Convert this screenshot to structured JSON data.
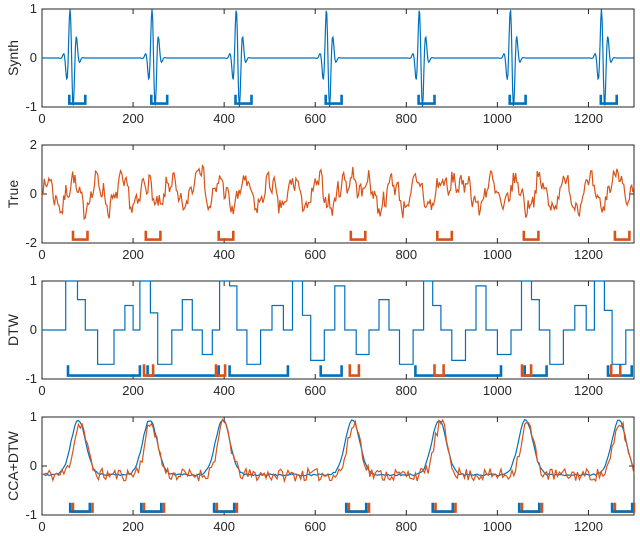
{
  "figure": {
    "background": "#ffffff",
    "axis_color": "#262626"
  },
  "chart_data": [
    {
      "type": "line",
      "ylabel": "Synth",
      "xlim": [
        0,
        1300
      ],
      "ylim": [
        -1,
        1
      ],
      "xticks": [
        0,
        200,
        400,
        600,
        800,
        1000,
        1200
      ],
      "yticks": [
        -1,
        0,
        1
      ],
      "axis_color": "#262626",
      "series": [
        {
          "name": "synth-signal",
          "color": "#0072BD",
          "kind": "bursts",
          "centers": [
            65,
            245,
            430,
            628,
            832,
            1032,
            1232
          ],
          "amp": 1.1,
          "period": 15,
          "sigma": 8,
          "seed": 1
        }
      ],
      "markers": [
        {
          "name": "synth-event-markers",
          "color": "#0072BD",
          "base": -0.93,
          "tip": -0.75,
          "intervals": [
            [
              60,
              95
            ],
            [
              240,
              275
            ],
            [
              425,
              460
            ],
            [
              623,
              658
            ],
            [
              827,
              862
            ],
            [
              1027,
              1062
            ],
            [
              1227,
              1262
            ]
          ]
        }
      ]
    },
    {
      "type": "line",
      "ylabel": "True",
      "xlim": [
        0,
        1300
      ],
      "ylim": [
        -2,
        2
      ],
      "xticks": [
        0,
        200,
        400,
        600,
        800,
        1000,
        1200
      ],
      "yticks": [
        -2,
        0,
        2
      ],
      "axis_color": "#262626",
      "series": [
        {
          "name": "true-signal",
          "color": "#D95319",
          "kind": "osc",
          "components": [
            [
              0.55,
              54,
              0
            ],
            [
              0.22,
              17,
              1.3
            ]
          ],
          "noise": 0.33,
          "peaks": [
            [
              350,
              1.15,
              7
            ],
            [
              685,
              1.25,
              7
            ],
            [
              905,
              1.15,
              7
            ],
            [
              1270,
              1.0,
              7
            ]
          ],
          "seed": 7
        }
      ],
      "markers": [
        {
          "name": "true-event-markers",
          "color": "#D95319",
          "base": -1.86,
          "tip": -1.5,
          "intervals": [
            [
              68,
              100
            ],
            [
              228,
              260
            ],
            [
              388,
              420
            ],
            [
              678,
              710
            ],
            [
              868,
              900
            ],
            [
              1058,
              1090
            ],
            [
              1258,
              1290
            ]
          ]
        }
      ]
    },
    {
      "type": "line",
      "ylabel": "DTW",
      "xlim": [
        0,
        1300
      ],
      "ylim": [
        -1,
        1
      ],
      "xticks": [
        0,
        200,
        400,
        600,
        800,
        1000,
        1200
      ],
      "yticks": [
        -1,
        0,
        1
      ],
      "axis_color": "#262626",
      "series": [
        {
          "name": "dtw-aligned-signal",
          "color": "#0072BD",
          "kind": "steps",
          "points": [
            [
              0,
              0
            ],
            [
              52,
              1
            ],
            [
              78,
              0.62
            ],
            [
              95,
              0
            ],
            [
              122,
              -0.7
            ],
            [
              158,
              0
            ],
            [
              182,
              0.5
            ],
            [
              200,
              0
            ],
            [
              215,
              1
            ],
            [
              238,
              0.35
            ],
            [
              254,
              -0.7
            ],
            [
              285,
              0
            ],
            [
              308,
              0.62
            ],
            [
              330,
              0
            ],
            [
              352,
              -0.5
            ],
            [
              374,
              0
            ],
            [
              390,
              1
            ],
            [
              412,
              0.9
            ],
            [
              428,
              0
            ],
            [
              450,
              -0.7
            ],
            [
              480,
              0
            ],
            [
              505,
              0.5
            ],
            [
              530,
              0
            ],
            [
              550,
              1
            ],
            [
              572,
              0.3
            ],
            [
              590,
              -0.62
            ],
            [
              620,
              0
            ],
            [
              643,
              0.9
            ],
            [
              665,
              0
            ],
            [
              690,
              -0.5
            ],
            [
              718,
              0
            ],
            [
              740,
              0.62
            ],
            [
              762,
              0
            ],
            [
              785,
              -0.7
            ],
            [
              815,
              0
            ],
            [
              838,
              1
            ],
            [
              858,
              0.5
            ],
            [
              876,
              0
            ],
            [
              900,
              -0.62
            ],
            [
              930,
              0
            ],
            [
              953,
              0.9
            ],
            [
              975,
              0
            ],
            [
              1000,
              -0.5
            ],
            [
              1030,
              0
            ],
            [
              1053,
              1
            ],
            [
              1075,
              0.62
            ],
            [
              1092,
              0
            ],
            [
              1115,
              -0.7
            ],
            [
              1145,
              0
            ],
            [
              1170,
              0.5
            ],
            [
              1195,
              0
            ],
            [
              1213,
              1
            ],
            [
              1235,
              0.4
            ],
            [
              1252,
              -0.7
            ],
            [
              1282,
              0
            ]
          ],
          "seed": 3
        }
      ],
      "markers": [
        {
          "name": "dtw-blue-event-markers",
          "color": "#0072BD",
          "base": -0.93,
          "tip": -0.72,
          "intervals": [
            [
              57,
              215
            ],
            [
              232,
              388
            ],
            [
              412,
              540
            ],
            [
              612,
              658
            ],
            [
              820,
              1008
            ],
            [
              1060,
              1108
            ],
            [
              1243,
              1295
            ]
          ]
        },
        {
          "name": "dtw-orange-event-markers",
          "color": "#D95319",
          "base": -0.93,
          "tip": -0.7,
          "intervals": [
            [
              224,
              244
            ],
            [
              382,
              402
            ],
            [
              676,
              696
            ],
            [
              862,
              882
            ],
            [
              1054,
              1074
            ],
            [
              1250,
              1270
            ]
          ]
        }
      ]
    },
    {
      "type": "line",
      "ylabel": "CCA+DTW",
      "xlim": [
        0,
        1300
      ],
      "ylim": [
        -1,
        1
      ],
      "xticks": [
        0,
        200,
        400,
        600,
        800,
        1000,
        1200
      ],
      "yticks": [
        -1,
        0,
        1
      ],
      "axis_color": "#262626",
      "series": [
        {
          "name": "cca-dtw-synth-signal",
          "color": "#0072BD",
          "kind": "bumps",
          "base": -0.18,
          "centers": [
            80,
            237,
            397,
            682,
            872,
            1062,
            1267
          ],
          "amp": 1.12,
          "width": 16,
          "noise": 0.02,
          "seed": 5
        },
        {
          "name": "cca-dtw-true-signal",
          "color": "#D95319",
          "kind": "bumps",
          "base": -0.18,
          "centers": [
            84,
            240,
            400,
            686,
            876,
            1066,
            1270
          ],
          "amp": 1.05,
          "width": 14,
          "noise": 0.13,
          "seed": 11
        }
      ],
      "markers": [
        {
          "name": "cca-dtw-orange-event-markers",
          "color": "#D95319",
          "base": -0.93,
          "tip": -0.75,
          "intervals": [
            [
              68,
              111
            ],
            [
              224,
              268
            ],
            [
              384,
              428
            ],
            [
              674,
              718
            ],
            [
              864,
              908
            ],
            [
              1054,
              1098
            ],
            [
              1258,
              1300
            ]
          ]
        },
        {
          "name": "cca-dtw-blue-event-markers",
          "color": "#0072BD",
          "base": -0.93,
          "tip": -0.75,
          "intervals": [
            [
              62,
              105
            ],
            [
              218,
              262
            ],
            [
              378,
              422
            ],
            [
              668,
              712
            ],
            [
              858,
              902
            ],
            [
              1048,
              1092
            ],
            [
              1252,
              1296
            ]
          ]
        }
      ]
    }
  ]
}
